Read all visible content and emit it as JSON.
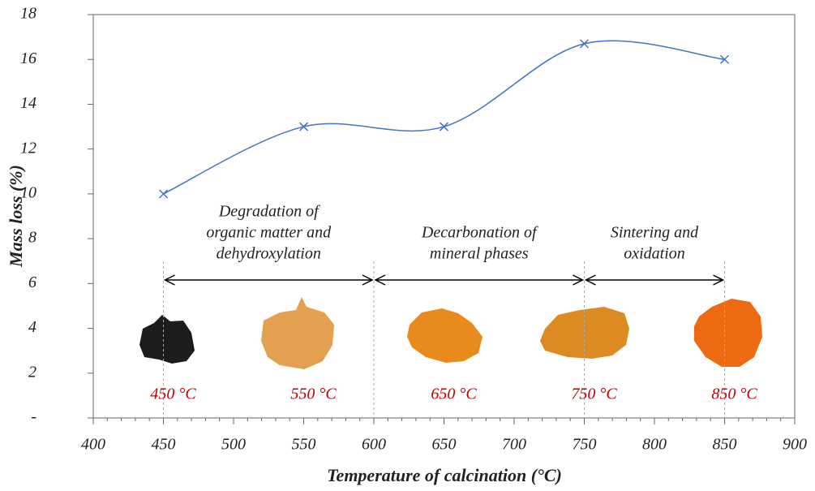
{
  "chart_data": {
    "type": "line",
    "x_label": "Temperature of calcination (°C)",
    "y_label": "Mass loss (%)",
    "x": [
      450,
      550,
      650,
      750,
      850
    ],
    "series": [
      {
        "name": "Mass loss",
        "color": "#4472c4",
        "values": [
          10,
          13,
          13,
          16.7,
          16
        ]
      }
    ],
    "xlim": [
      400,
      900
    ],
    "xticks": [
      400,
      450,
      500,
      550,
      600,
      650,
      700,
      750,
      800,
      850,
      900
    ],
    "ylim": [
      0,
      18
    ],
    "yticks": [
      {
        "value": 0,
        "label": "-"
      },
      2,
      4,
      6,
      8,
      10,
      12,
      14,
      16,
      18
    ],
    "sample_labels": [
      "450 °C",
      "550 °C",
      "650 °C",
      "750 °C",
      "850 °C"
    ],
    "regions": [
      {
        "label": [
          "Degradation of",
          "organic matter and",
          "dehydroxylation"
        ],
        "from": 450,
        "to": 600
      },
      {
        "label": [
          "Decarbonation of",
          "mineral phases"
        ],
        "from": 600,
        "to": 750
      },
      {
        "label": [
          "Sintering and",
          "oxidation"
        ],
        "from": 750,
        "to": 850
      }
    ]
  }
}
